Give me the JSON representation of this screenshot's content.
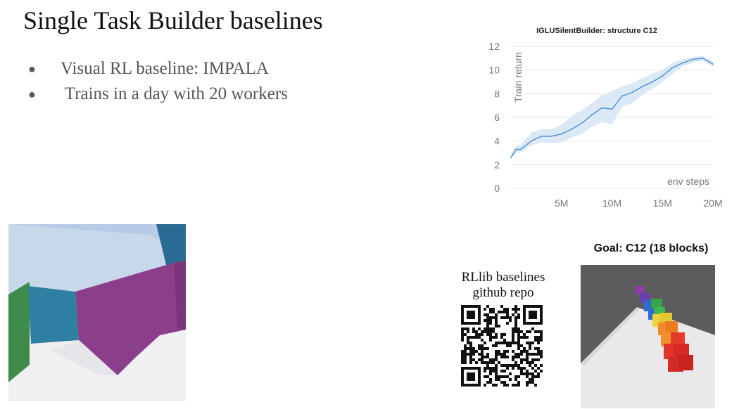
{
  "slide": {
    "title": "Single Task Builder baselines",
    "bullets": [
      "Visual RL baseline: IMPALA",
      " Trains in a day with 20 workers"
    ]
  },
  "chart_data": {
    "type": "line",
    "title": "IGLUSilentBuilder: structure C12",
    "xlabel": "env steps",
    "ylabel": "Train return",
    "xlim": [
      0,
      20000000
    ],
    "ylim": [
      0,
      12
    ],
    "x_ticks": [
      "5M",
      "10M",
      "15M",
      "20M"
    ],
    "y_ticks": [
      "0",
      "2",
      "4",
      "6",
      "8",
      "10",
      "12"
    ],
    "grid": "horizontal",
    "series": [
      {
        "color": "#4a8fd4",
        "x": [
          0,
          500000,
          1000000,
          2000000,
          3000000,
          4000000,
          5000000,
          6000000,
          7000000,
          8000000,
          9000000,
          10000000,
          11000000,
          12000000,
          13000000,
          14000000,
          15000000,
          16000000,
          17000000,
          18000000,
          19000000,
          20000000
        ],
        "y": [
          2.6,
          3.3,
          3.3,
          4.0,
          4.4,
          4.4,
          4.6,
          5.0,
          5.5,
          6.2,
          6.8,
          6.7,
          7.8,
          8.1,
          8.6,
          9.0,
          9.5,
          10.2,
          10.6,
          10.9,
          11.0,
          10.5
        ],
        "band_low": [
          2.5,
          3.0,
          3.0,
          3.6,
          3.9,
          3.8,
          3.9,
          4.3,
          4.6,
          5.2,
          5.6,
          5.4,
          6.9,
          7.2,
          7.9,
          8.4,
          9.0,
          9.7,
          10.3,
          10.6,
          10.8,
          10.3
        ],
        "band_high": [
          2.8,
          3.6,
          3.7,
          4.7,
          5.0,
          5.0,
          5.4,
          6.1,
          6.6,
          7.2,
          7.9,
          8.2,
          8.6,
          8.9,
          9.3,
          9.7,
          10.0,
          10.6,
          10.9,
          11.1,
          11.2,
          10.7
        ]
      }
    ]
  },
  "qr": {
    "caption_line1": "RLlib baselines",
    "caption_line2": "github repo"
  },
  "goal": {
    "title": "Goal: C12 (18 blocks)"
  }
}
